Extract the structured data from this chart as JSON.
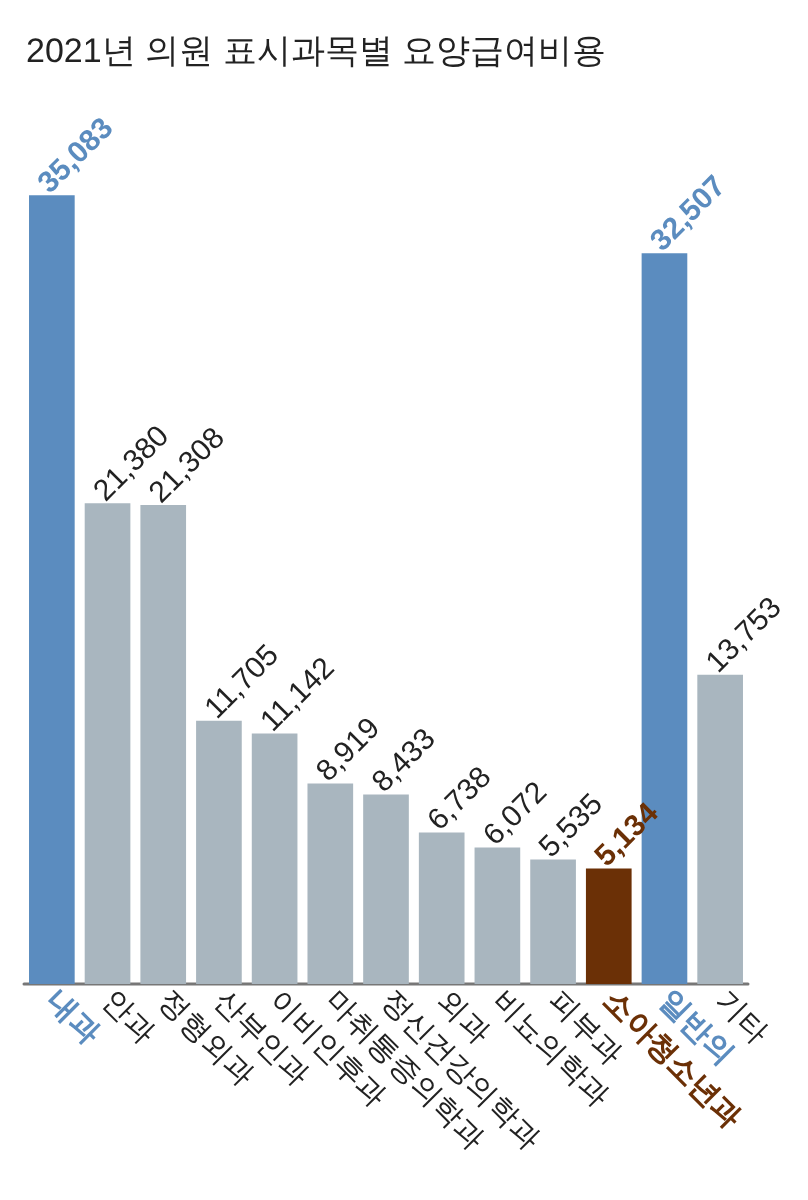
{
  "chart_data": {
    "type": "bar",
    "title": "2021년 의원 표시과목별 요양급여비용",
    "categories": [
      "내과",
      "안과",
      "정형외과",
      "산부인과",
      "이비인후과",
      "마취통증의학과",
      "정신건강의학과",
      "외과",
      "비뇨의학과",
      "피부과",
      "소아청소년과",
      "일반의",
      "기타"
    ],
    "values": [
      35083,
      21380,
      21308,
      11705,
      11142,
      8919,
      8433,
      6738,
      6072,
      5535,
      5134,
      32507,
      13753
    ],
    "value_labels": [
      "35,083",
      "21,380",
      "21,308",
      "11,705",
      "11,142",
      "8,919",
      "8,433",
      "6,738",
      "6,072",
      "5,535",
      "5,134",
      "32,507",
      "13,753"
    ],
    "colors": [
      "#5b8cbf",
      "#a9b6bf",
      "#a9b6bf",
      "#a9b6bf",
      "#a9b6bf",
      "#a9b6bf",
      "#a9b6bf",
      "#a9b6bf",
      "#a9b6bf",
      "#a9b6bf",
      "#6b3006",
      "#5b8cbf",
      "#a9b6bf"
    ],
    "grid": false
  }
}
